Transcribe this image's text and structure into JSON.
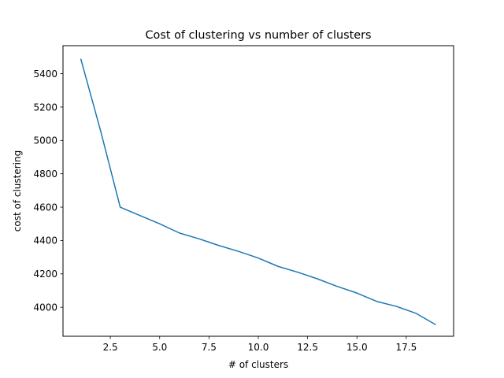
{
  "chart_data": {
    "type": "line",
    "title": "Cost of clustering vs number of clusters",
    "xlabel": "# of clusters",
    "ylabel": "cost of clustering",
    "xlim": [
      0.1,
      19.9
    ],
    "ylim": [
      3826,
      5568
    ],
    "xticks": [
      2.5,
      5.0,
      7.5,
      10.0,
      12.5,
      15.0,
      17.5
    ],
    "xtick_labels": [
      "2.5",
      "5.0",
      "7.5",
      "10.0",
      "12.5",
      "15.0",
      "17.5"
    ],
    "yticks": [
      4000,
      4200,
      4400,
      4600,
      4800,
      5000,
      5200,
      5400
    ],
    "ytick_labels": [
      "4000",
      "4200",
      "4400",
      "4600",
      "4800",
      "5000",
      "5200",
      "5400"
    ],
    "grid": false,
    "line_color": "#1f77b4",
    "series": [
      {
        "x": [
          1,
          2,
          3,
          4,
          5,
          6,
          7,
          8,
          9,
          10,
          11,
          12,
          13,
          14,
          15,
          16,
          17,
          18,
          19
        ],
        "values": [
          5490,
          5060,
          4600,
          4550,
          4500,
          4445,
          4410,
          4370,
          4335,
          4295,
          4245,
          4210,
          4170,
          4125,
          4085,
          4035,
          4005,
          3963,
          3895
        ]
      }
    ]
  }
}
